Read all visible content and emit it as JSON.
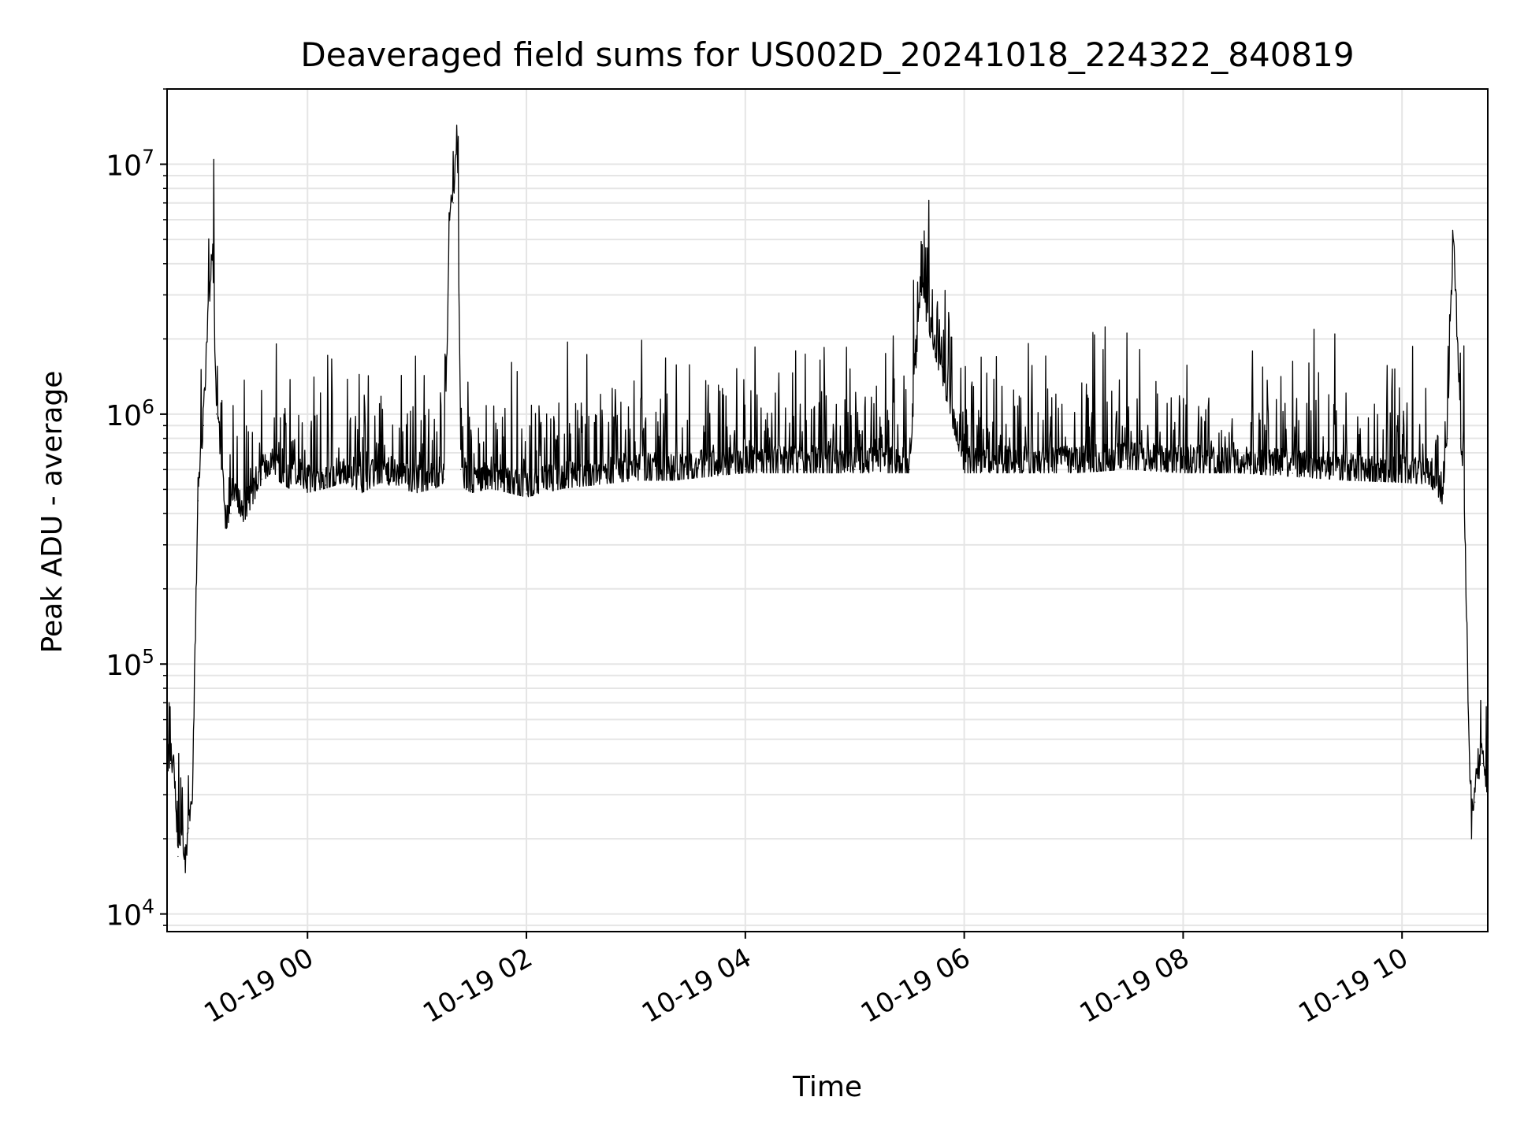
{
  "chart_data": {
    "type": "line",
    "title": "Deaveraged field sums for US002D_20241018_224322_840819",
    "xlabel": "Time",
    "ylabel": "Peak ADU - average",
    "yscale": "log",
    "ylim": [
      8500,
      20000000
    ],
    "xlim": [
      "2024-10-18T22:43:00",
      "2024-10-19T10:47:00"
    ],
    "grid": true,
    "legend": "none",
    "colors": {
      "line": "#000000",
      "grid": "#e5e5e5",
      "axes": "#000000"
    },
    "x_ticks": [
      {
        "label": "10-19 00",
        "value": "2024-10-19T00:00:00"
      },
      {
        "label": "10-19 02",
        "value": "2024-10-19T02:00:00"
      },
      {
        "label": "10-19 04",
        "value": "2024-10-19T04:00:00"
      },
      {
        "label": "10-19 06",
        "value": "2024-10-19T06:00:00"
      },
      {
        "label": "10-19 08",
        "value": "2024-10-19T08:00:00"
      },
      {
        "label": "10-19 10",
        "value": "2024-10-19T10:00:00"
      }
    ],
    "y_ticks": [
      {
        "base": "10",
        "exp": "4",
        "value": 10000
      },
      {
        "base": "10",
        "exp": "5",
        "value": 100000
      },
      {
        "base": "10",
        "exp": "6",
        "value": 1000000
      },
      {
        "base": "10",
        "exp": "7",
        "value": 10000000
      }
    ],
    "series": [
      {
        "color": "#000000",
        "x": [
          "2024-10-18T22:43:00",
          "2024-10-18T22:45:00",
          "2024-10-18T22:47:00",
          "2024-10-18T22:49:00",
          "2024-10-18T22:51:00",
          "2024-10-18T22:53:00",
          "2024-10-18T22:55:00",
          "2024-10-18T22:57:00",
          "2024-10-18T23:00:00",
          "2024-10-18T23:03:00",
          "2024-10-18T23:05:00",
          "2024-10-18T23:08:00",
          "2024-10-18T23:10:00",
          "2024-10-18T23:13:00",
          "2024-10-18T23:15:00",
          "2024-10-18T23:18:00",
          "2024-10-18T23:20:00",
          "2024-10-18T23:25:00",
          "2024-10-18T23:30:00",
          "2024-10-18T23:35:00",
          "2024-10-18T23:40:00",
          "2024-10-18T23:45:00",
          "2024-10-18T23:50:00",
          "2024-10-18T23:55:00",
          "2024-10-19T00:00:00",
          "2024-10-19T00:10:00",
          "2024-10-19T00:20:00",
          "2024-10-19T00:30:00",
          "2024-10-19T00:40:00",
          "2024-10-19T00:50:00",
          "2024-10-19T01:00:00",
          "2024-10-19T01:10:00",
          "2024-10-19T01:15:00",
          "2024-10-19T01:18:00",
          "2024-10-19T01:20:00",
          "2024-10-19T01:22:00",
          "2024-10-19T01:24:00",
          "2024-10-19T01:26:00",
          "2024-10-19T01:30:00",
          "2024-10-19T01:40:00",
          "2024-10-19T01:50:00",
          "2024-10-19T02:00:00",
          "2024-10-19T02:20:00",
          "2024-10-19T02:40:00",
          "2024-10-19T03:00:00",
          "2024-10-19T03:20:00",
          "2024-10-19T03:40:00",
          "2024-10-19T04:00:00",
          "2024-10-19T04:30:00",
          "2024-10-19T05:00:00",
          "2024-10-19T05:30:00",
          "2024-10-19T05:36:00",
          "2024-10-19T06:00:00",
          "2024-10-19T06:30:00",
          "2024-10-19T07:00:00",
          "2024-10-19T07:30:00",
          "2024-10-19T08:00:00",
          "2024-10-19T08:30:00",
          "2024-10-19T09:00:00",
          "2024-10-19T09:30:00",
          "2024-10-19T10:00:00",
          "2024-10-19T10:15:00",
          "2024-10-19T10:22:00",
          "2024-10-19T10:25:00",
          "2024-10-19T10:28:00",
          "2024-10-19T10:30:00",
          "2024-10-19T10:32:00",
          "2024-10-19T10:34:00",
          "2024-10-19T10:36:00",
          "2024-10-19T10:38:00",
          "2024-10-19T10:40:00",
          "2024-10-19T10:42:00",
          "2024-10-19T10:44:00",
          "2024-10-19T10:47:00"
        ],
        "y": [
          38000,
          40000,
          35000,
          17000,
          21000,
          15000,
          22000,
          30000,
          450000,
          900000,
          2000000,
          4500000,
          1000000,
          600000,
          350000,
          400000,
          450000,
          380000,
          450000,
          550000,
          600000,
          550000,
          520000,
          550000,
          500000,
          520000,
          550000,
          500000,
          550000,
          520000,
          500000,
          520000,
          550000,
          6000000,
          7000000,
          13000000,
          600000,
          520000,
          500000,
          520000,
          500000,
          480000,
          520000,
          540000,
          560000,
          560000,
          580000,
          600000,
          600000,
          600000,
          600000,
          3000000,
          600000,
          600000,
          600000,
          620000,
          600000,
          600000,
          580000,
          560000,
          550000,
          540000,
          450000,
          800000,
          5000000,
          2000000,
          800000,
          500000,
          80000,
          20000,
          28000,
          35000,
          40000,
          30000
        ],
        "noise_profile": {
          "floor": 0.97,
          "spike_rate": 0.05,
          "spike_max": 3.2
        }
      }
    ]
  }
}
